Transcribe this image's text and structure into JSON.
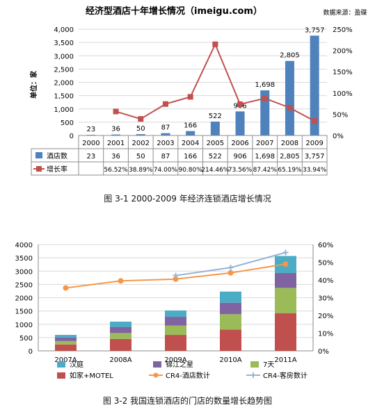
{
  "chart_data": [
    {
      "type": "bar",
      "title": "经济型酒店十年增长情况（imeigu.com）",
      "source": "数据来源：盈碟",
      "ylabel": "单位：家",
      "caption": "图 3-1  2000-2009 年经济连锁酒店增长情况",
      "categories": [
        "2000",
        "2001",
        "2002",
        "2003",
        "2004",
        "2005",
        "2006",
        "2007",
        "2008",
        "2009"
      ],
      "ylim": [
        0,
        4000
      ],
      "y2lim": [
        0,
        250
      ],
      "yticks": [
        "0",
        "500",
        "1,000",
        "1,500",
        "2,000",
        "2,500",
        "3,000",
        "3,500",
        "4,000"
      ],
      "y2ticks": [
        "0%",
        "50%",
        "100%",
        "150%",
        "200%",
        "250%"
      ],
      "series": [
        {
          "name": "酒店数",
          "type": "bar",
          "color": "#4F81BD",
          "values": [
            23,
            36,
            50,
            87,
            166,
            522,
            906,
            1698,
            2805,
            3757
          ],
          "labels": [
            "23",
            "36",
            "50",
            "87",
            "166",
            "522",
            "906",
            "1,698",
            "2,805",
            "3,757"
          ]
        },
        {
          "name": "增长率",
          "type": "line",
          "axis": "right",
          "color": "#C0504D",
          "values": [
            null,
            56.52,
            38.89,
            74.0,
            90.8,
            214.46,
            73.56,
            87.42,
            65.19,
            33.94
          ],
          "labels": [
            "",
            "56.52%",
            "38.89%",
            "74.00%",
            "90.80%",
            "214.46%",
            "73.56%",
            "87.42%",
            "65.19%",
            "33.94%"
          ]
        }
      ]
    },
    {
      "type": "bar",
      "stacked": true,
      "caption": "图 3-2  我国连锁酒店的门店的数量增长趋势图",
      "categories": [
        "2007A",
        "2008A",
        "2009A",
        "2010A",
        "2011A"
      ],
      "ylim": [
        0,
        4000
      ],
      "y2lim": [
        0,
        60
      ],
      "yticks": [
        "0",
        "500",
        "1000",
        "1500",
        "2000",
        "2500",
        "3000",
        "3500",
        "4000"
      ],
      "y2ticks": [
        "0%",
        "10%",
        "20%",
        "30%",
        "40%",
        "50%",
        "60%"
      ],
      "legend_position": "bottom",
      "series": [
        {
          "name": "如家+MOTEL",
          "type": "bar",
          "color": "#C0504D",
          "values": [
            240,
            450,
            600,
            800,
            1420
          ]
        },
        {
          "name": "7天",
          "type": "bar",
          "color": "#9BBB59",
          "values": [
            130,
            220,
            350,
            580,
            950
          ]
        },
        {
          "name": "锦江之星",
          "type": "bar",
          "color": "#8064A2",
          "values": [
            130,
            230,
            330,
            430,
            560
          ]
        },
        {
          "name": "汉庭",
          "type": "bar",
          "color": "#4BACC6",
          "values": [
            100,
            200,
            240,
            420,
            640
          ]
        },
        {
          "name": "CR4-酒店数计",
          "type": "line",
          "axis": "right",
          "color": "#F79646",
          "values": [
            35.5,
            39.5,
            40.5,
            44,
            49
          ]
        },
        {
          "name": "CR4-客房数计",
          "type": "line",
          "axis": "right",
          "color": "#95B3D7",
          "values": [
            null,
            null,
            42.5,
            47,
            55.5
          ]
        }
      ]
    }
  ]
}
